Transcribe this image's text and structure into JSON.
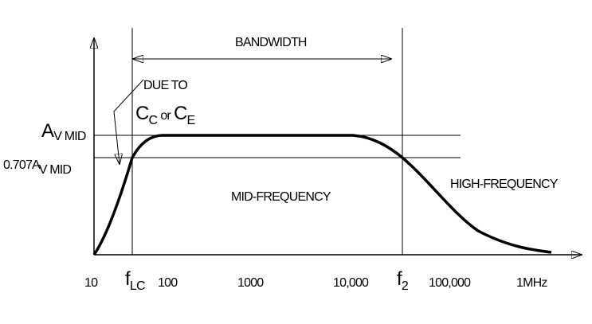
{
  "labels": {
    "bandwidth": "BANDWIDTH",
    "due_to": "DUE TO",
    "cc": {
      "main": "C",
      "sub": "C"
    },
    "or": "or",
    "ce": {
      "main": "C",
      "sub": "E"
    },
    "av_mid": {
      "main": "A",
      "sub": "V MID"
    },
    "av_707": {
      "main": "0.707A",
      "sub": "V MID"
    },
    "mid_frequency": "MID-FREQUENCY",
    "high_frequency": "HIGH-FREQUENCY",
    "f_lc": {
      "main": "f",
      "sub": "LC"
    },
    "f_2": {
      "main": "f",
      "sub": "2"
    }
  },
  "x_axis": {
    "labels": [
      "10",
      "100",
      "1000",
      "10,000",
      "100,000",
      "1MHz"
    ]
  }
}
